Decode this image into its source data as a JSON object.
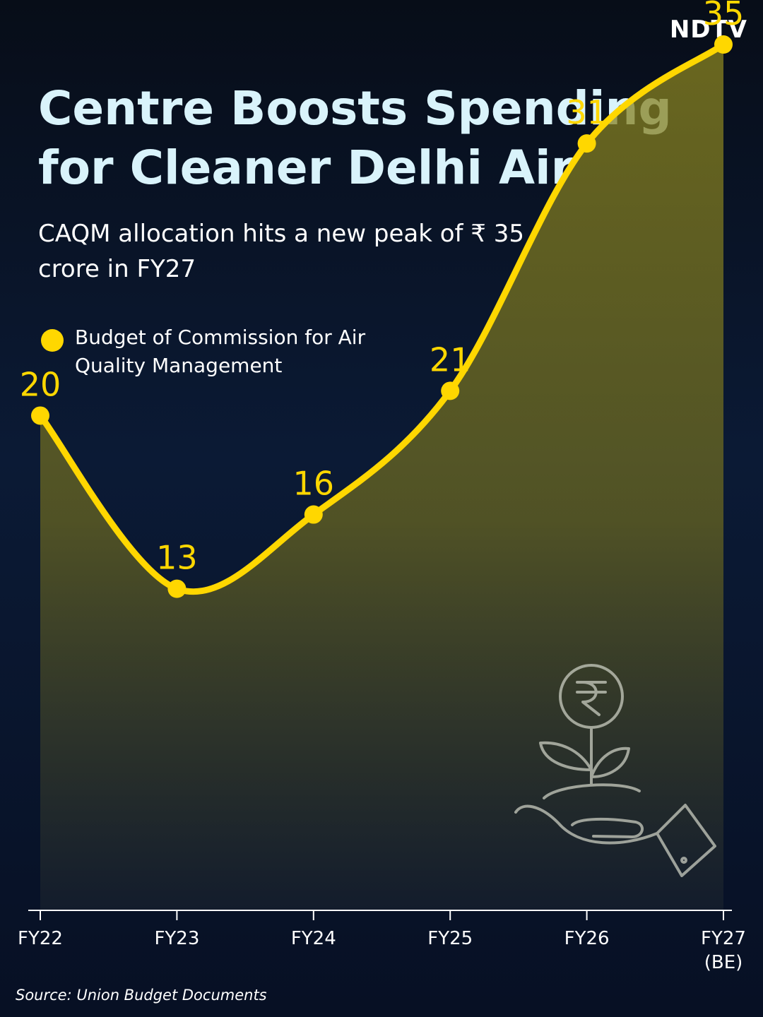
{
  "brand": "NDTV",
  "title": "Centre Boosts Spending for Cleaner Delhi Air",
  "subtitle": "CAQM allocation hits a new peak of ₹ 35 crore in FY27",
  "source": "Source: Union Budget Documents",
  "colors": {
    "accent": "#ffd700",
    "title": "#d9f3fb",
    "background": "#0b1a35"
  },
  "chart_data": {
    "type": "area",
    "categories": [
      "FY22",
      "FY23",
      "FY24",
      "FY25",
      "FY26",
      "FY27 (BE)"
    ],
    "series": [
      {
        "name": "Budget of Commission for Air Quality Management",
        "values": [
          20,
          13,
          16,
          21,
          31,
          35
        ]
      }
    ],
    "data_labels": [
      "20",
      "13",
      "16",
      "21",
      "31",
      "35"
    ],
    "tick_labels": [
      [
        "FY22"
      ],
      [
        "FY23"
      ],
      [
        "FY24"
      ],
      [
        "FY25"
      ],
      [
        "FY26"
      ],
      [
        "FY27",
        "(BE)"
      ]
    ],
    "unit": "₹ crore",
    "ylim": [
      0,
      36
    ],
    "grid": false,
    "legend": "top-left"
  },
  "decoration": {
    "icon": "rupee-plant-hand-icon"
  }
}
